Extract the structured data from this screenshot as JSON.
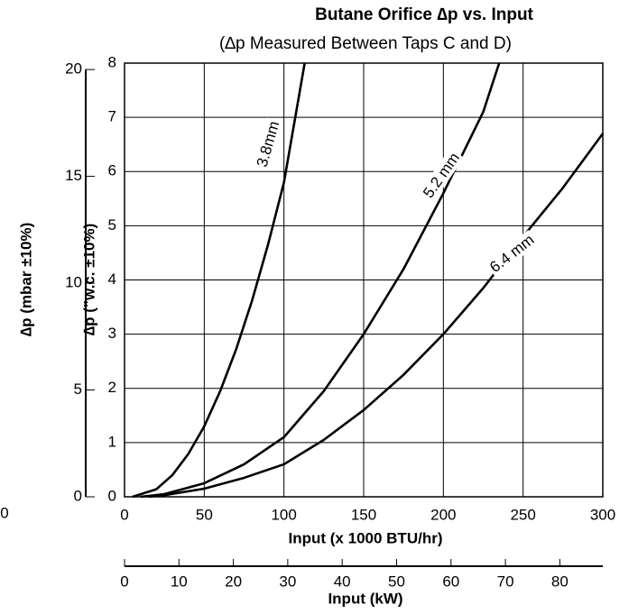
{
  "chart_data": {
    "type": "line",
    "title": "Butane Orifice ∆p vs. Input",
    "subtitle": "(∆p Measured Between Taps C and D)",
    "x_label": "Input (x 1000 BTU/hr)",
    "y_label": "∆p (\"w.c. ±10%)",
    "y2_label": "∆p (mbar ±10%)",
    "x2_label": "Input (kW)",
    "annotations": [
      "0"
    ],
    "xlim": [
      0,
      300
    ],
    "xticks": [
      0,
      50,
      100,
      150,
      200,
      250,
      300
    ],
    "ylim": [
      0,
      8
    ],
    "yticks": [
      0,
      1,
      2,
      3,
      4,
      5,
      6,
      7,
      8
    ],
    "y2lim": [
      0,
      20.3
    ],
    "y2ticks": [
      0,
      5,
      10,
      15,
      20
    ],
    "x2lim": [
      0,
      87.9
    ],
    "x2ticks": [
      0,
      10,
      20,
      30,
      40,
      50,
      60,
      70,
      80
    ],
    "grid": true,
    "series": [
      {
        "name": "3.8mm",
        "color": "#000000",
        "x": [
          5,
          20,
          30,
          40,
          50,
          60,
          70,
          80,
          90,
          100,
          113
        ],
        "values": [
          0,
          0.14,
          0.4,
          0.79,
          1.3,
          1.95,
          2.72,
          3.62,
          4.65,
          5.8,
          8.0
        ]
      },
      {
        "name": "5.2 mm",
        "color": "#000000",
        "x": [
          10,
          25,
          50,
          75,
          100,
          125,
          150,
          175,
          200,
          225,
          235
        ],
        "values": [
          0,
          0.05,
          0.25,
          0.6,
          1.1,
          1.95,
          3.0,
          4.2,
          5.6,
          7.1,
          8.0
        ]
      },
      {
        "name": "6.4 mm",
        "color": "#000000",
        "x": [
          15,
          25,
          50,
          75,
          100,
          125,
          150,
          175,
          200,
          225,
          250,
          275,
          300
        ],
        "values": [
          0,
          0.03,
          0.15,
          0.35,
          0.6,
          1.05,
          1.6,
          2.25,
          3.0,
          3.85,
          4.8,
          5.7,
          6.7
        ]
      }
    ]
  }
}
